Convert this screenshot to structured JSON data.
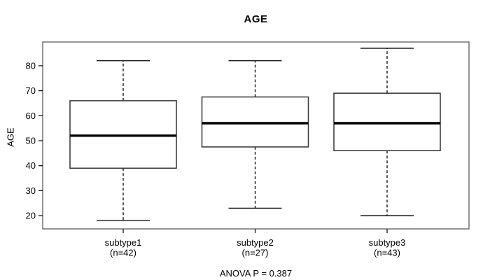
{
  "chart_data": {
    "type": "boxplot",
    "title": "AGE",
    "ylabel": "AGE",
    "xlabel": "",
    "ylim": [
      14.7,
      89.5
    ],
    "yticks": [
      20,
      30,
      40,
      50,
      60,
      70,
      80
    ],
    "grid": false,
    "categories": [
      "subtype1",
      "subtype2",
      "subtype3"
    ],
    "category_sublabels": [
      "(n=42)",
      "(n=27)",
      "(n=43)"
    ],
    "series": [
      {
        "name": "subtype1",
        "n": 42,
        "whisker_low": 18,
        "q1": 39,
        "median": 52,
        "q3": 66,
        "whisker_high": 82
      },
      {
        "name": "subtype2",
        "n": 27,
        "whisker_low": 23,
        "q1": 47.5,
        "median": 57,
        "q3": 67.5,
        "whisker_high": 82
      },
      {
        "name": "subtype3",
        "n": 43,
        "whisker_low": 20,
        "q1": 46,
        "median": 57,
        "q3": 69,
        "whisker_high": 87
      }
    ],
    "annotation": "ANOVA P = 0.387",
    "colors": {
      "line": "#000000",
      "box_stroke": "#333333",
      "box_fill": "#ffffff",
      "frame": "#686868",
      "background": "#ffffff"
    }
  }
}
